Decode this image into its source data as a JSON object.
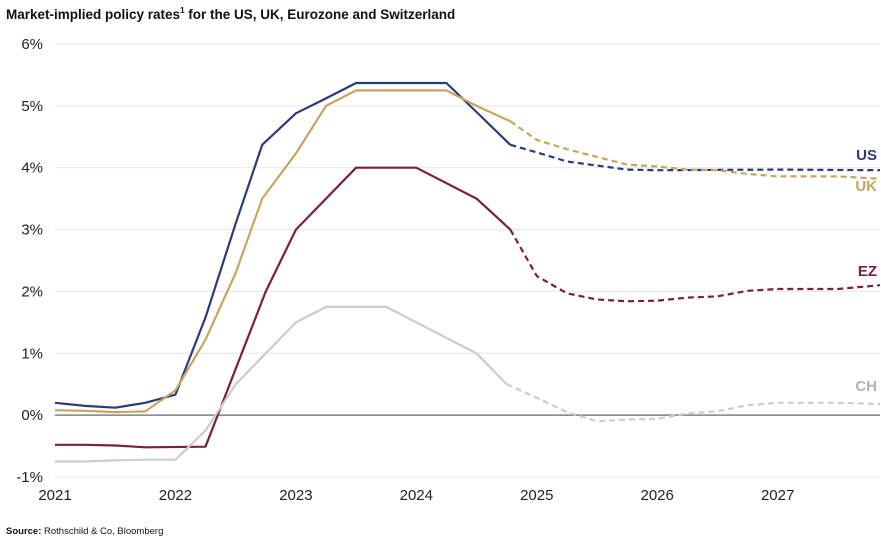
{
  "title_main": "Market-implied policy rates",
  "title_sup": "1",
  "title_rest": " for the US, UK, Eurozone and Switzerland",
  "source_label": "Source:",
  "source_text": "Rothschild & Co, Bloomberg",
  "chart_data": {
    "type": "line",
    "xlim": [
      2021.0,
      2027.85
    ],
    "ylim": [
      -1,
      6
    ],
    "x_ticks": [
      2021,
      2022,
      2023,
      2024,
      2025,
      2026,
      2027
    ],
    "x_tick_labels": [
      "2021",
      "2022",
      "2023",
      "2024",
      "2025",
      "2026",
      "2027"
    ],
    "y_ticks": [
      -1,
      0,
      1,
      2,
      3,
      4,
      5,
      6
    ],
    "y_tick_labels": [
      "-1%",
      "0%",
      "1%",
      "2%",
      "3%",
      "4%",
      "5%",
      "6%"
    ],
    "grid": true,
    "zero_line": true,
    "series": [
      {
        "name": "US",
        "color": "#2b3a7a",
        "actual": [
          [
            2021.0,
            0.2
          ],
          [
            2021.25,
            0.15
          ],
          [
            2021.5,
            0.12
          ],
          [
            2021.75,
            0.2
          ],
          [
            2022.0,
            0.33
          ],
          [
            2022.25,
            1.58
          ],
          [
            2022.5,
            3.1
          ],
          [
            2022.72,
            4.37
          ],
          [
            2023.0,
            4.88
          ],
          [
            2023.25,
            5.12
          ],
          [
            2023.5,
            5.37
          ],
          [
            2024.25,
            5.37
          ],
          [
            2024.5,
            4.9
          ],
          [
            2024.78,
            4.37
          ]
        ],
        "forecast": [
          [
            2024.78,
            4.37
          ],
          [
            2025.0,
            4.25
          ],
          [
            2025.25,
            4.1
          ],
          [
            2025.75,
            3.97
          ],
          [
            2026.0,
            3.96
          ],
          [
            2027.0,
            3.97
          ],
          [
            2027.85,
            3.96
          ]
        ]
      },
      {
        "name": "UK",
        "color": "#c9a45f",
        "actual": [
          [
            2021.0,
            0.08
          ],
          [
            2021.25,
            0.07
          ],
          [
            2021.5,
            0.05
          ],
          [
            2021.75,
            0.06
          ],
          [
            2022.0,
            0.4
          ],
          [
            2022.25,
            1.22
          ],
          [
            2022.5,
            2.3
          ],
          [
            2022.72,
            3.5
          ],
          [
            2023.0,
            4.23
          ],
          [
            2023.25,
            5.0
          ],
          [
            2023.5,
            5.25
          ],
          [
            2024.25,
            5.25
          ],
          [
            2024.5,
            5.0
          ],
          [
            2024.78,
            4.75
          ]
        ],
        "forecast": [
          [
            2024.78,
            4.75
          ],
          [
            2025.0,
            4.45
          ],
          [
            2025.25,
            4.3
          ],
          [
            2025.75,
            4.05
          ],
          [
            2026.0,
            4.02
          ],
          [
            2026.25,
            3.97
          ],
          [
            2026.5,
            3.96
          ],
          [
            2026.75,
            3.9
          ],
          [
            2027.0,
            3.86
          ],
          [
            2027.5,
            3.86
          ],
          [
            2027.85,
            3.82
          ]
        ]
      },
      {
        "name": "EZ",
        "color": "#7a1f3d",
        "actual": [
          [
            2021.0,
            -0.48
          ],
          [
            2021.25,
            -0.48
          ],
          [
            2021.5,
            -0.49
          ],
          [
            2021.75,
            -0.52
          ],
          [
            2022.25,
            -0.51
          ],
          [
            2022.5,
            0.75
          ],
          [
            2022.75,
            2.0
          ],
          [
            2023.0,
            3.0
          ],
          [
            2023.5,
            4.0
          ],
          [
            2024.0,
            4.0
          ],
          [
            2024.5,
            3.5
          ],
          [
            2024.78,
            3.0
          ]
        ],
        "forecast": [
          [
            2024.78,
            3.0
          ],
          [
            2025.0,
            2.25
          ],
          [
            2025.25,
            1.97
          ],
          [
            2025.5,
            1.87
          ],
          [
            2025.75,
            1.84
          ],
          [
            2026.0,
            1.85
          ],
          [
            2026.25,
            1.9
          ],
          [
            2026.5,
            1.92
          ],
          [
            2026.75,
            2.01
          ],
          [
            2027.0,
            2.04
          ],
          [
            2027.5,
            2.04
          ],
          [
            2027.85,
            2.1
          ]
        ]
      },
      {
        "name": "CH",
        "color": "#d0ccc6",
        "actual": [
          [
            2021.0,
            -0.75
          ],
          [
            2021.25,
            -0.75
          ],
          [
            2021.5,
            -0.73
          ],
          [
            2021.75,
            -0.72
          ],
          [
            2022.0,
            -0.72
          ],
          [
            2022.25,
            -0.25
          ],
          [
            2022.5,
            0.5
          ],
          [
            2022.75,
            1.0
          ],
          [
            2023.0,
            1.5
          ],
          [
            2023.25,
            1.75
          ],
          [
            2023.75,
            1.75
          ],
          [
            2024.0,
            1.5
          ],
          [
            2024.5,
            1.0
          ],
          [
            2024.75,
            0.5
          ]
        ],
        "forecast": [
          [
            2024.75,
            0.5
          ],
          [
            2025.0,
            0.28
          ],
          [
            2025.25,
            0.05
          ],
          [
            2025.5,
            -0.1
          ],
          [
            2025.75,
            -0.07
          ],
          [
            2026.0,
            -0.06
          ],
          [
            2026.25,
            0.03
          ],
          [
            2026.5,
            0.06
          ],
          [
            2026.75,
            0.16
          ],
          [
            2027.0,
            0.2
          ],
          [
            2027.5,
            0.2
          ],
          [
            2027.85,
            0.18
          ]
        ]
      }
    ]
  }
}
